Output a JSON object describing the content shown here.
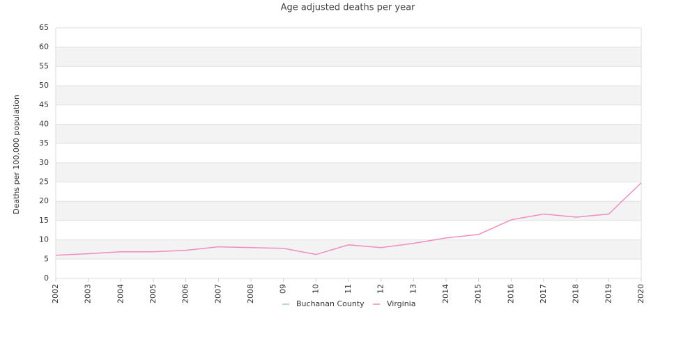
{
  "chart_data": {
    "type": "line",
    "title": "Age adjusted deaths per year",
    "ylabel": "Deaths per 100,000 population",
    "categories": [
      "2002",
      "2003",
      "2004",
      "2005",
      "2006",
      "2007",
      "2008",
      "09",
      "10",
      "11",
      "12",
      "13",
      "2014",
      "2015",
      "2016",
      "2017",
      "2018",
      "2019",
      "2020"
    ],
    "series": [
      {
        "name": "Buchanan County",
        "color": "#9ecae1",
        "values": [
          null,
          null,
          null,
          null,
          null,
          null,
          null,
          null,
          null,
          null,
          null,
          null,
          null,
          null,
          null,
          null,
          null,
          null,
          null
        ]
      },
      {
        "name": "Virginia",
        "color": "#f28cbf",
        "values": [
          6.0,
          6.4,
          6.9,
          6.9,
          7.3,
          8.2,
          8.0,
          7.8,
          6.2,
          8.7,
          8.0,
          9.1,
          10.5,
          11.4,
          15.2,
          16.7,
          15.9,
          16.7,
          24.8
        ]
      }
    ],
    "ylim": [
      0,
      65
    ],
    "yticks": [
      0,
      5,
      10,
      15,
      20,
      25,
      30,
      35,
      40,
      45,
      50,
      55,
      60,
      65
    ],
    "grid": true,
    "legend": "bottom"
  }
}
